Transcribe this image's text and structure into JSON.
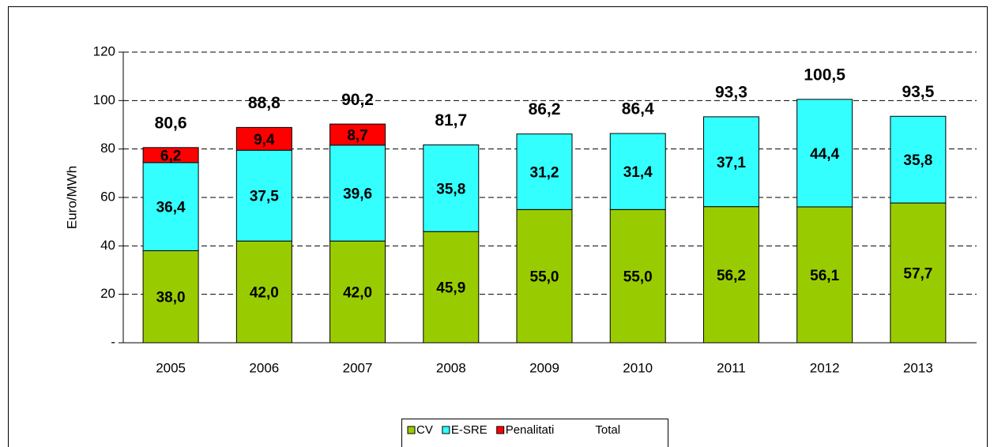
{
  "chart_data": {
    "type": "stacked_bar",
    "y_axis_label": "Euro/MWh",
    "categories": [
      "2005",
      "2006",
      "2007",
      "2008",
      "2009",
      "2010",
      "2011",
      "2012",
      "2013"
    ],
    "series": [
      {
        "name": "CV",
        "color": "#99cc00",
        "values": [
          38.0,
          42.0,
          42.0,
          45.9,
          55.0,
          55.0,
          56.2,
          56.1,
          57.7
        ],
        "value_labels": [
          "38,0",
          "42,0",
          "42,0",
          "45,9",
          "55,0",
          "55,0",
          "56,2",
          "56,1",
          "57,7"
        ]
      },
      {
        "name": "E-SRE",
        "color": "#33ffff",
        "values": [
          36.4,
          37.5,
          39.6,
          35.8,
          31.2,
          31.4,
          37.1,
          44.4,
          35.8
        ],
        "value_labels": [
          "36,4",
          "37,5",
          "39,6",
          "35,8",
          "31,2",
          "31,4",
          "37,1",
          "44,4",
          "35,8"
        ]
      },
      {
        "name": "Penalitati",
        "color": "#ff0000",
        "values": [
          6.2,
          9.4,
          8.7,
          null,
          null,
          null,
          null,
          null,
          null
        ],
        "value_labels": [
          "6,2",
          "9,4",
          "8,7",
          null,
          null,
          null,
          null,
          null,
          null
        ]
      },
      {
        "name": "Total",
        "values": [
          80.6,
          88.8,
          90.2,
          81.7,
          86.2,
          86.4,
          93.3,
          100.5,
          93.5
        ],
        "value_labels": [
          "80,6",
          "88,8",
          "90,2",
          "81,7",
          "86,2",
          "86,4",
          "93,3",
          "100,5",
          "93,5"
        ]
      }
    ],
    "ylim": [
      0,
      120
    ],
    "yticks": [
      {
        "value": 0,
        "label": "-"
      },
      20,
      40,
      60,
      80,
      100,
      120
    ],
    "grid": true,
    "legend": "bottom"
  }
}
